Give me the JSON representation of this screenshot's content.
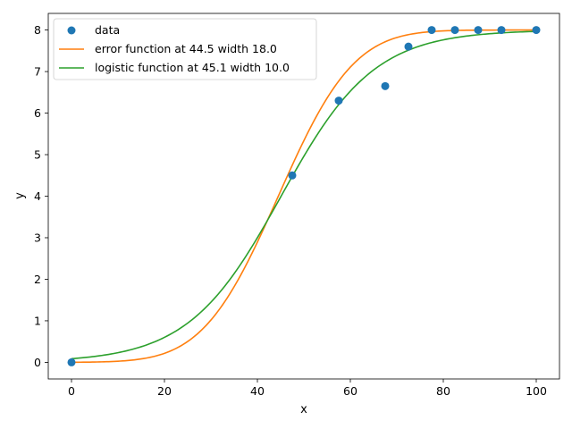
{
  "chart_data": {
    "type": "scatter",
    "xlabel": "x",
    "ylabel": "y",
    "xlim": [
      -5,
      105
    ],
    "ylim": [
      -0.4,
      8.4
    ],
    "xticks": [
      0,
      20,
      40,
      60,
      80,
      100
    ],
    "yticks": [
      0,
      1,
      2,
      3,
      4,
      5,
      6,
      7,
      8
    ],
    "grid": false,
    "legend_placement": "upper-left",
    "scatter_series": {
      "name": "data",
      "color": "#1f77b4",
      "points": [
        [
          0,
          0.0
        ],
        [
          47.5,
          4.5
        ],
        [
          57.5,
          6.3
        ],
        [
          67.5,
          6.65
        ],
        [
          72.5,
          7.6
        ],
        [
          77.5,
          8.0
        ],
        [
          82.5,
          8.0
        ],
        [
          87.5,
          8.0
        ],
        [
          92.5,
          8.0
        ],
        [
          100,
          8.0
        ]
      ]
    },
    "line_series": [
      {
        "name": "error function at 44.5 width 18.0",
        "color": "#ff7f0e",
        "model": "erf",
        "center": 44.5,
        "width": 18.0,
        "amplitude": 8.0
      },
      {
        "name": "logistic function at 45.1 width 10.0",
        "color": "#2ca02c",
        "model": "logistic",
        "center": 45.1,
        "width": 10.0,
        "amplitude": 8.0
      }
    ]
  }
}
